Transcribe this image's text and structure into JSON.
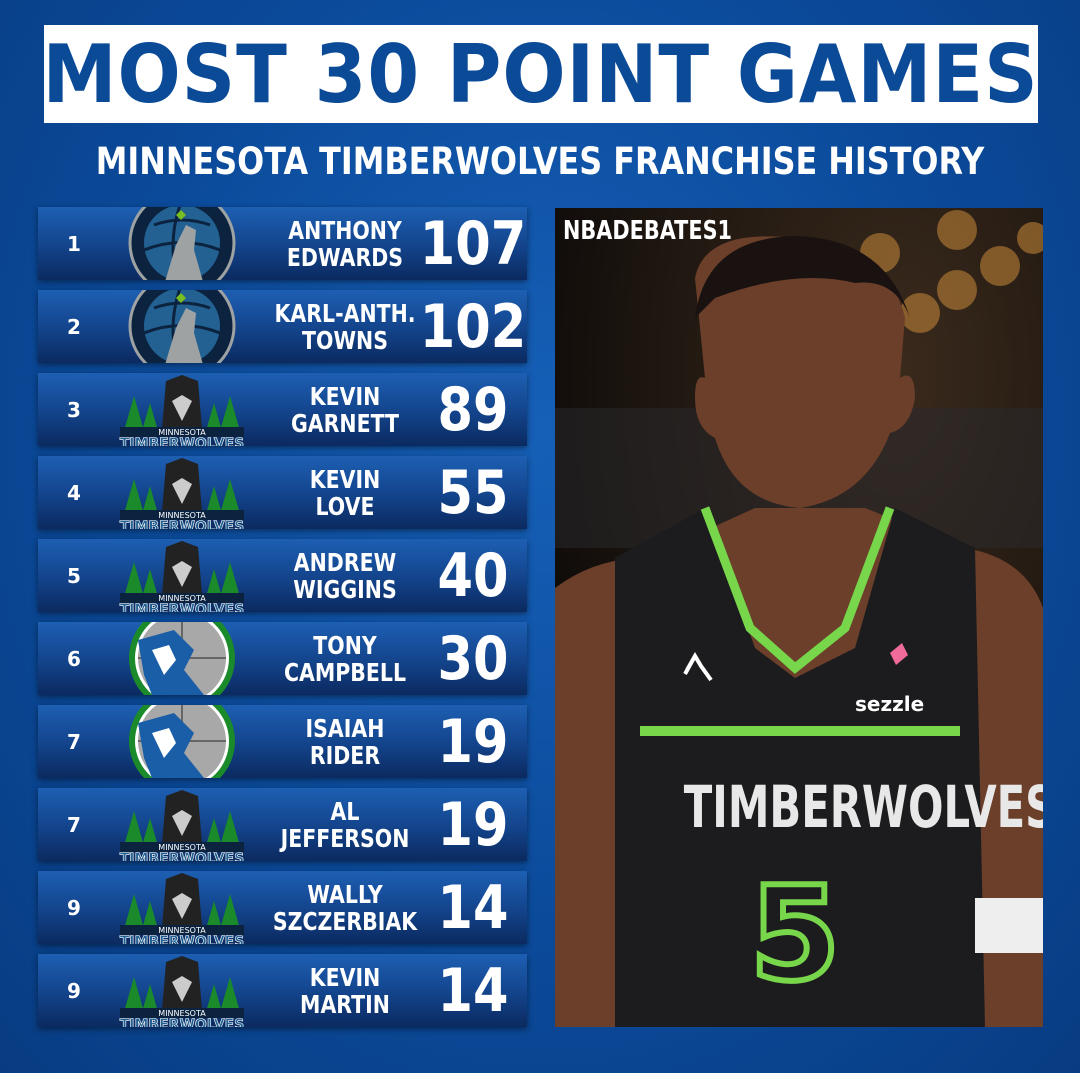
{
  "title": "MOST 30 POINT GAMES",
  "subtitle": "MINNESOTA TIMBERWOLVES FRANCHISE HISTORY",
  "watermark": "NBADEBATES1",
  "colors": {
    "background": "#0b4a9a",
    "title_text": "#0a4a97",
    "row": "#13438a",
    "jersey_trim": "#78d64b"
  },
  "logo_lettering": {
    "modern": "MINNESOTA TIMBERWOLVES",
    "classic": "MINNESOTA TIMBERWOLVES"
  },
  "rows": [
    {
      "rank": "1",
      "first": "ANTHONY",
      "last": "EDWARDS",
      "value": "107",
      "logo": "modern"
    },
    {
      "rank": "2",
      "first": "KARL-ANTH.",
      "last": "TOWNS",
      "value": "102",
      "logo": "modern"
    },
    {
      "rank": "3",
      "first": "KEVIN",
      "last": "GARNETT",
      "value": "89",
      "logo": "classic"
    },
    {
      "rank": "4",
      "first": "KEVIN",
      "last": "LOVE",
      "value": "55",
      "logo": "classic"
    },
    {
      "rank": "5",
      "first": "ANDREW",
      "last": "WIGGINS",
      "value": "40",
      "logo": "classic"
    },
    {
      "rank": "6",
      "first": "TONY",
      "last": "CAMPBELL",
      "value": "30",
      "logo": "original"
    },
    {
      "rank": "7",
      "first": "ISAIAH",
      "last": "RIDER",
      "value": "19",
      "logo": "original"
    },
    {
      "rank": "7",
      "first": "AL",
      "last": "JEFFERSON",
      "value": "19",
      "logo": "classic"
    },
    {
      "rank": "9",
      "first": "WALLY",
      "last": "SZCZERBIAK",
      "value": "14",
      "logo": "classic"
    },
    {
      "rank": "9",
      "first": "KEVIN",
      "last": "MARTIN",
      "value": "14",
      "logo": "classic"
    }
  ],
  "jersey": {
    "team": "TIMBERWOLVES",
    "number": "5",
    "sponsor": "sezzle"
  }
}
